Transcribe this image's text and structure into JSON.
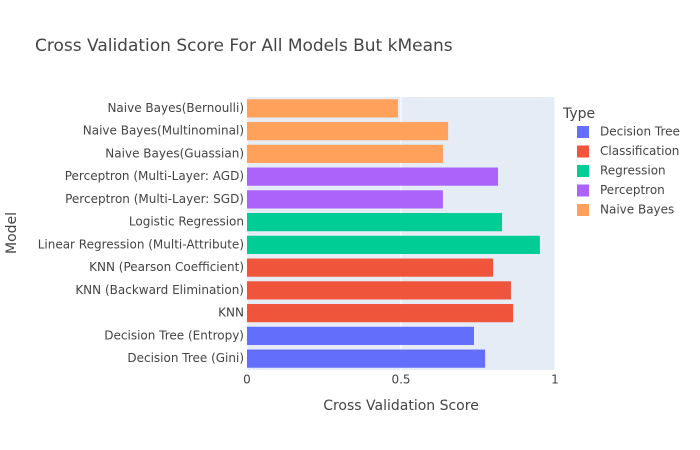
{
  "chart_data": {
    "type": "bar",
    "orientation": "horizontal",
    "title": "Cross Validation Score For All Models But kMeans",
    "x_label": "Cross Validation Score",
    "y_label": "Model",
    "legend_title": "Type",
    "legend_position": "right",
    "categories": [
      "Decision Tree (Gini)",
      "Decision Tree (Entropy)",
      "KNN",
      "KNN (Backward Elimination)",
      "KNN (Pearson Coefficient)",
      "Linear Regression (Multi-Attribute)",
      "Logistic Regression",
      "Perceptron (Multi-Layer: SGD)",
      "Perceptron (Multi-Layer: AGD)",
      "Naive Bayes(Guassian)",
      "Naive Bayes(Multinominal)",
      "Naive Bayes(Bernoulli)"
    ],
    "series": [
      {
        "name": "Decision Tree",
        "color": "#636efa",
        "values": [
          0.773,
          0.737,
          null,
          null,
          null,
          null,
          null,
          null,
          null,
          null,
          null,
          null
        ]
      },
      {
        "name": "Classification",
        "color": "#ef553b",
        "values": [
          null,
          null,
          0.864,
          0.857,
          0.799,
          null,
          null,
          null,
          null,
          null,
          null,
          null
        ]
      },
      {
        "name": "Regression",
        "color": "#00cc96",
        "values": [
          null,
          null,
          null,
          null,
          null,
          0.951,
          0.828,
          null,
          null,
          null,
          null,
          null
        ]
      },
      {
        "name": "Perceptron",
        "color": "#ab63fa",
        "values": [
          null,
          null,
          null,
          null,
          null,
          null,
          null,
          0.636,
          0.815,
          null,
          null,
          null
        ]
      },
      {
        "name": "Naive Bayes",
        "color": "#ffa15a",
        "values": [
          null,
          null,
          null,
          null,
          null,
          null,
          null,
          null,
          null,
          0.636,
          0.653,
          0.49
        ]
      }
    ],
    "xlim": [
      0,
      1
    ],
    "xticks": [
      0,
      0.5,
      1
    ],
    "grid": true
  }
}
